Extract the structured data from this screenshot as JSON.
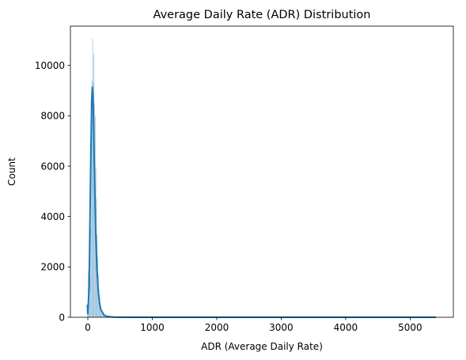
{
  "chart_data": {
    "type": "bar",
    "title": "Average Daily Rate (ADR) Distribution",
    "xlabel": "ADR (Average Daily Rate)",
    "ylabel": "Count",
    "xlim": [
      -270,
      5670
    ],
    "ylim": [
      0,
      11560
    ],
    "x_ticks": [
      0,
      1000,
      2000,
      3000,
      4000,
      5000
    ],
    "y_ticks": [
      0,
      2000,
      4000,
      6000,
      8000,
      10000
    ],
    "grid": false,
    "bar_color": "#1f77b4",
    "kde_color": "#1f77b4",
    "histogram": {
      "bin_width": 10,
      "bins": [
        {
          "x": -10,
          "count": 300
        },
        {
          "x": 0,
          "count": 1850
        },
        {
          "x": 10,
          "count": 250
        },
        {
          "x": 20,
          "count": 700
        },
        {
          "x": 30,
          "count": 1600
        },
        {
          "x": 40,
          "count": 3600
        },
        {
          "x": 50,
          "count": 6900
        },
        {
          "x": 60,
          "count": 9400
        },
        {
          "x": 70,
          "count": 11050
        },
        {
          "x": 80,
          "count": 9300
        },
        {
          "x": 90,
          "count": 10450
        },
        {
          "x": 100,
          "count": 8500
        },
        {
          "x": 110,
          "count": 8000
        },
        {
          "x": 120,
          "count": 5900
        },
        {
          "x": 130,
          "count": 4700
        },
        {
          "x": 140,
          "count": 3300
        },
        {
          "x": 150,
          "count": 2400
        },
        {
          "x": 160,
          "count": 1700
        },
        {
          "x": 170,
          "count": 1100
        },
        {
          "x": 180,
          "count": 800
        },
        {
          "x": 190,
          "count": 550
        },
        {
          "x": 200,
          "count": 380
        },
        {
          "x": 210,
          "count": 260
        },
        {
          "x": 220,
          "count": 180
        },
        {
          "x": 230,
          "count": 120
        },
        {
          "x": 240,
          "count": 80
        },
        {
          "x": 250,
          "count": 55
        },
        {
          "x": 260,
          "count": 40
        },
        {
          "x": 270,
          "count": 28
        },
        {
          "x": 280,
          "count": 20
        },
        {
          "x": 290,
          "count": 15
        },
        {
          "x": 300,
          "count": 10
        }
      ]
    },
    "kde": {
      "x": [
        -6,
        0,
        20,
        40,
        60,
        70,
        80,
        90,
        100,
        110,
        120,
        140,
        160,
        180,
        200,
        250,
        300,
        400,
        600,
        1000,
        2000,
        3000,
        4000,
        5000,
        5400
      ],
      "y": [
        500,
        120,
        1200,
        5200,
        8600,
        9150,
        8800,
        7600,
        6200,
        4800,
        3600,
        2000,
        1100,
        600,
        320,
        90,
        30,
        8,
        2,
        0,
        0,
        0,
        0,
        0,
        0
      ]
    }
  }
}
